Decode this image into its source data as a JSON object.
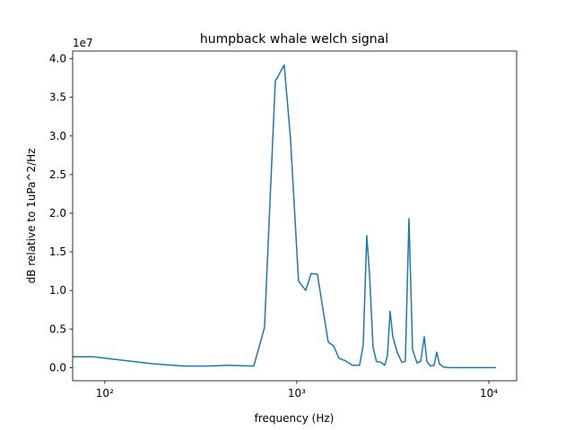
{
  "chart_data": {
    "type": "line",
    "title": "humpback whale welch signal",
    "x_label": "frequency (Hz)",
    "y_label": "dB relative to 1uPa^2/Hz",
    "y_offset_label": "1e7",
    "x_scale": "log",
    "xlim": [
      68,
      13960
    ],
    "ylim": [
      -0.17,
      4.1
    ],
    "xticks": [
      {
        "value": 100,
        "label": "10²"
      },
      {
        "value": 1000,
        "label": "10³"
      },
      {
        "value": 10000,
        "label": "10⁴"
      }
    ],
    "yticks": [
      {
        "value": 0,
        "label": "0.0"
      },
      {
        "value": 0.5,
        "label": "0.5"
      },
      {
        "value": 1,
        "label": "1.0"
      },
      {
        "value": 1.5,
        "label": "1.5"
      },
      {
        "value": 2,
        "label": "2.0"
      },
      {
        "value": 2.5,
        "label": "2.5"
      },
      {
        "value": 3,
        "label": "3.0"
      },
      {
        "value": 3.5,
        "label": "3.5"
      },
      {
        "value": 4,
        "label": "4.0"
      }
    ],
    "series": [
      {
        "color": "#1f77b4",
        "x": [
          68,
          87,
          177,
          258,
          348,
          441,
          597,
          679,
          732,
          773,
          860,
          927,
          1021,
          1113,
          1188,
          1280,
          1458,
          1556,
          1660,
          1787,
          1950,
          2124,
          2218,
          2314,
          2392,
          2497,
          2600,
          2748,
          2870,
          2964,
          3062,
          3163,
          3334,
          3521,
          3676,
          3839,
          4008,
          4230,
          4417,
          4611,
          4760,
          4970,
          5190,
          5356,
          5530,
          5774,
          6160,
          6860,
          8080,
          10890
        ],
        "values": [
          0.14,
          0.14,
          0.05,
          0.02,
          0.02,
          0.03,
          0.02,
          0.52,
          2.38,
          3.71,
          3.92,
          2.97,
          1.12,
          1.0,
          1.22,
          1.21,
          0.33,
          0.28,
          0.12,
          0.09,
          0.03,
          0.03,
          0.29,
          1.71,
          1.21,
          0.26,
          0.08,
          0.07,
          0.03,
          0.15,
          0.73,
          0.4,
          0.2,
          0.07,
          0.08,
          1.93,
          0.23,
          0.06,
          0.08,
          0.4,
          0.08,
          0.02,
          0.03,
          0.2,
          0.05,
          0.01,
          0.0,
          0.0,
          0.0,
          0.0
        ]
      }
    ]
  }
}
